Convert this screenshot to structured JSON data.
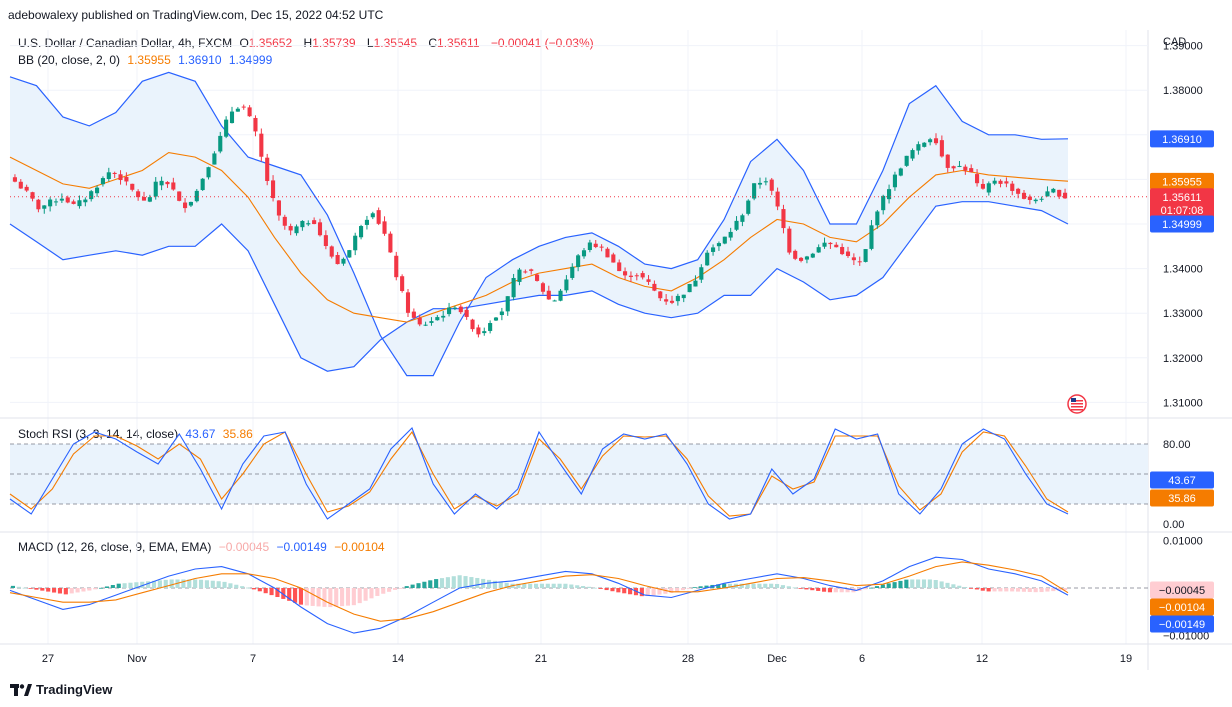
{
  "caption": "adebowalexy published on TradingView.com, Dec 15, 2022 04:52 UTC",
  "footer_brand": "TradingView",
  "colors": {
    "up": "#089981",
    "down": "#f23645",
    "bb_basis": "#f57c00",
    "bb_band": "#2962ff",
    "bb_fill": "#eaf3fc",
    "macd": "#2962ff",
    "signal": "#f57c00"
  },
  "header": {
    "symbol": "U.S. Dollar / Canadian Dollar, 4h, FXCM",
    "o_label": "O",
    "o_value": "1.35652",
    "h_label": "H",
    "h_value": "1.35739",
    "l_label": "L",
    "l_value": "1.35545",
    "c_label": "C",
    "c_value": "1.35611",
    "change": "−0.00041 (−0.03%)"
  },
  "bb_legend": {
    "label": "BB (20, close, 2, 0)",
    "basis": "1.35955",
    "upper": "1.36910",
    "lower": "1.34999"
  },
  "rsi_legend": {
    "label": "Stoch RSI (3, 3, 14, 14, close)",
    "k": "43.67",
    "d": "35.86"
  },
  "macd_legend": {
    "label": "MACD (12, 26, close, 9, EMA, EMA)",
    "hist": "−0.00045",
    "macd": "−0.00149",
    "signal": "−0.00104"
  },
  "currency": "CAD",
  "timer": "01:07:08",
  "chart_data": [
    {
      "type": "candlestick",
      "name": "price",
      "x_ticks": [
        "27",
        "Nov",
        "7",
        "14",
        "21",
        "28",
        "Dec",
        "6",
        "12",
        "19"
      ],
      "y_ticks": [
        "1.39000",
        "1.38000",
        "1.37000",
        "1.36000",
        "1.35000",
        "1.34000",
        "1.33000",
        "1.32000",
        "1.31000"
      ],
      "ylim": [
        1.3065,
        1.3935
      ],
      "last_price": 1.35611,
      "price_labels": {
        "upper": "1.36910",
        "basis": "1.35955",
        "last": "1.35611",
        "lower": "1.34999"
      },
      "close_path": [
        1.3595,
        1.357,
        1.3535,
        1.355,
        1.356,
        1.354,
        1.356,
        1.359,
        1.362,
        1.36,
        1.357,
        1.3545,
        1.36,
        1.359,
        1.3535,
        1.356,
        1.362,
        1.368,
        1.375,
        1.377,
        1.372,
        1.361,
        1.352,
        1.348,
        1.35,
        1.351,
        1.345,
        1.341,
        1.344,
        1.35,
        1.353,
        1.3475,
        1.338,
        1.33,
        1.327,
        1.3285,
        1.33,
        1.332,
        1.328,
        1.325,
        1.329,
        1.331,
        1.339,
        1.34,
        1.336,
        1.332,
        1.3365,
        1.342,
        1.3455,
        1.345,
        1.342,
        1.338,
        1.339,
        1.337,
        1.3335,
        1.3325,
        1.3345,
        1.3375,
        1.344,
        1.3455,
        1.3485,
        1.3525,
        1.359,
        1.36,
        1.353,
        1.343,
        1.342,
        1.344,
        1.346,
        1.3445,
        1.342,
        1.341,
        1.352,
        1.357,
        1.362,
        1.366,
        1.368,
        1.37,
        1.363,
        1.363,
        1.362,
        1.357,
        1.36,
        1.359,
        1.357,
        1.355,
        1.356,
        1.3575,
        1.356
      ],
      "bb_upper_path": [
        1.383,
        1.381,
        1.374,
        1.372,
        1.375,
        1.382,
        1.384,
        1.382,
        1.372,
        1.365,
        1.363,
        1.361,
        1.352,
        1.339,
        1.325,
        1.316,
        1.316,
        1.328,
        1.338,
        1.342,
        1.345,
        1.347,
        1.348,
        1.345,
        1.341,
        1.34,
        1.342,
        1.351,
        1.364,
        1.369,
        1.362,
        1.35,
        1.35,
        1.362,
        1.377,
        1.381,
        1.373,
        1.37,
        1.37,
        1.369,
        1.3691
      ],
      "bb_basis_path": [
        1.365,
        1.362,
        1.359,
        1.358,
        1.36,
        1.362,
        1.366,
        1.365,
        1.362,
        1.356,
        1.347,
        1.339,
        1.333,
        1.33,
        1.329,
        1.328,
        1.33,
        1.332,
        1.334,
        1.337,
        1.339,
        1.34,
        1.341,
        1.338,
        1.336,
        1.335,
        1.338,
        1.342,
        1.347,
        1.351,
        1.35,
        1.347,
        1.346,
        1.35,
        1.356,
        1.361,
        1.362,
        1.361,
        1.3605,
        1.36,
        1.3596
      ],
      "bb_lower_path": [
        1.35,
        1.346,
        1.342,
        1.343,
        1.344,
        1.343,
        1.345,
        1.345,
        1.35,
        1.344,
        1.332,
        1.32,
        1.317,
        1.318,
        1.324,
        1.328,
        1.331,
        1.331,
        1.332,
        1.333,
        1.334,
        1.334,
        1.335,
        1.332,
        1.33,
        1.329,
        1.33,
        1.334,
        1.334,
        1.34,
        1.337,
        1.333,
        1.334,
        1.338,
        1.346,
        1.354,
        1.355,
        1.355,
        1.354,
        1.353,
        1.35
      ]
    },
    {
      "type": "line",
      "name": "stoch-rsi",
      "y_ticks": [
        "80.00",
        "0.00"
      ],
      "ylim": [
        -8,
        106
      ],
      "bands": [
        80,
        50,
        20
      ],
      "series": [
        {
          "name": "K",
          "values": [
            25,
            10,
            45,
            80,
            92,
            85,
            72,
            60,
            90,
            55,
            15,
            60,
            88,
            92,
            40,
            5,
            20,
            35,
            75,
            96,
            40,
            10,
            30,
            15,
            35,
            92,
            60,
            30,
            75,
            90,
            85,
            90,
            60,
            20,
            5,
            10,
            55,
            30,
            45,
            95,
            85,
            90,
            30,
            10,
            35,
            80,
            95,
            85,
            50,
            20,
            10
          ]
        },
        {
          "name": "D",
          "values": [
            30,
            15,
            35,
            70,
            88,
            88,
            78,
            65,
            80,
            65,
            25,
            50,
            80,
            92,
            50,
            12,
            18,
            32,
            65,
            92,
            50,
            15,
            28,
            18,
            30,
            85,
            65,
            35,
            68,
            88,
            87,
            88,
            65,
            28,
            8,
            10,
            48,
            35,
            42,
            88,
            88,
            88,
            38,
            14,
            30,
            72,
            92,
            88,
            58,
            25,
            12
          ]
        }
      ],
      "last_labels": {
        "k": "43.67",
        "d": "35.86"
      }
    },
    {
      "type": "bar",
      "name": "macd",
      "y_ticks": [
        "0.01000",
        "−0.01000"
      ],
      "ylim": [
        -0.0118,
        0.0118
      ],
      "series": [
        {
          "name": "MACD",
          "values": [
            -0.0005,
            -0.0025,
            -0.0045,
            -0.0035,
            -0.0015,
            0.0005,
            0.0025,
            0.004,
            0.0045,
            0.003,
            0.0,
            -0.004,
            -0.0075,
            -0.0095,
            -0.0085,
            -0.006,
            -0.003,
            0.0,
            0.001,
            0.0015,
            0.0025,
            0.0035,
            0.003,
            0.001,
            -0.0015,
            -0.002,
            -0.0005,
            0.001,
            0.002,
            0.003,
            0.002,
            0.0005,
            -0.0005,
            0.0015,
            0.0045,
            0.0065,
            0.006,
            0.004,
            0.003,
            0.0015,
            -0.0015
          ]
        },
        {
          "name": "Signal",
          "values": [
            -0.001,
            -0.002,
            -0.003,
            -0.003,
            -0.0025,
            -0.001,
            0.0005,
            0.002,
            0.003,
            0.003,
            0.002,
            0.0,
            -0.003,
            -0.0055,
            -0.007,
            -0.0065,
            -0.005,
            -0.003,
            -0.001,
            0.0005,
            0.0015,
            0.0025,
            0.0028,
            0.002,
            0.0005,
            -0.0008,
            -0.0008,
            0.0,
            0.001,
            0.002,
            0.0022,
            0.0015,
            0.0005,
            0.0008,
            0.0025,
            0.0045,
            0.0055,
            0.0048,
            0.0038,
            0.0025,
            -0.001
          ]
        }
      ],
      "last_labels": {
        "hist": "−0.00045",
        "signal": "−0.00104",
        "macd": "−0.00149"
      }
    }
  ]
}
